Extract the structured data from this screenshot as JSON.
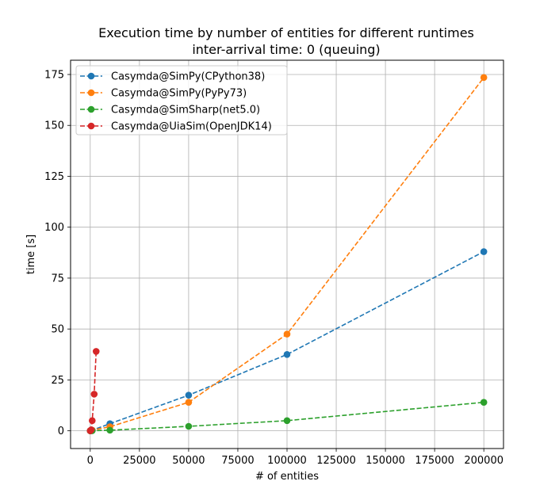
{
  "chart_data": {
    "type": "line",
    "title": "Execution time by number of entities for different runtimes",
    "subtitle": "inter-arrival time: 0 (queuing)",
    "xlabel": "# of entities",
    "ylabel": "time [s]",
    "xlim": [
      -10000,
      210000
    ],
    "ylim": [
      -8.7,
      182
    ],
    "x_ticks": [
      0,
      25000,
      50000,
      75000,
      100000,
      125000,
      150000,
      175000,
      200000
    ],
    "y_ticks": [
      0,
      25,
      50,
      75,
      100,
      125,
      150,
      175
    ],
    "grid": true,
    "legend_position": "top-left",
    "series": [
      {
        "name": "Casymda@SimPy(CPython38)",
        "color": "#1f77b4",
        "points": [
          [
            0,
            0
          ],
          [
            100,
            0.04
          ],
          [
            1000,
            0.3
          ],
          [
            10000,
            3.5
          ],
          [
            50000,
            17.5
          ],
          [
            100000,
            37.5
          ],
          [
            200000,
            88
          ]
        ]
      },
      {
        "name": "Casymda@SimPy(PyPy73)",
        "color": "#ff7f0e",
        "points": [
          [
            0,
            0
          ],
          [
            100,
            0.05
          ],
          [
            1000,
            0.3
          ],
          [
            10000,
            2.0
          ],
          [
            50000,
            14.0
          ],
          [
            100000,
            47.5
          ],
          [
            200000,
            173.5
          ]
        ]
      },
      {
        "name": "Casymda@SimSharp(net5.0)",
        "color": "#2ca02c",
        "points": [
          [
            0,
            0
          ],
          [
            100,
            0.01
          ],
          [
            1000,
            0.05
          ],
          [
            10000,
            0.3
          ],
          [
            50000,
            2.2
          ],
          [
            100000,
            5.0
          ],
          [
            200000,
            14.0
          ]
        ]
      },
      {
        "name": "Casymda@UiaSim(OpenJDK14)",
        "color": "#d62728",
        "points": [
          [
            0,
            0
          ],
          [
            100,
            0.1
          ],
          [
            500,
            0.5
          ],
          [
            1000,
            5.0
          ],
          [
            2000,
            18.0
          ],
          [
            3000,
            39.0
          ]
        ]
      }
    ]
  }
}
